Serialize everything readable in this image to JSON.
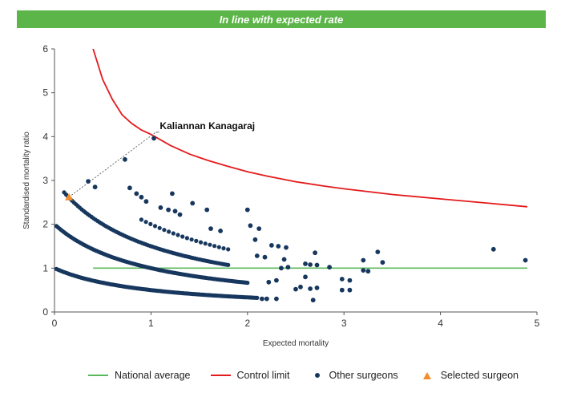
{
  "banner": {
    "text": "In line with expected rate",
    "color": "#5cb548"
  },
  "colors": {
    "national_average": "#5cb85c",
    "control_limit": "#e41a1c",
    "other_surgeons": "#17375e",
    "selected_surgeon": "#f28e2b"
  },
  "chart_data": {
    "type": "scatter",
    "xlabel": "Expected mortality",
    "ylabel": "Standardised mortality ratio",
    "xlim": [
      0,
      5
    ],
    "ylim": [
      0,
      6
    ],
    "xticks": [
      "0",
      "1",
      "2",
      "3",
      "4",
      "5"
    ],
    "yticks": [
      "0",
      "1",
      "2",
      "3",
      "4",
      "5",
      "6"
    ],
    "grid": false,
    "legend_position": "bottom",
    "national_average": {
      "name": "National average",
      "y": 1,
      "x_range": [
        0.4,
        4.9
      ]
    },
    "control_limit": {
      "name": "Control limit",
      "points": [
        [
          0.4,
          6.0
        ],
        [
          0.5,
          5.3
        ],
        [
          0.6,
          4.85
        ],
        [
          0.7,
          4.5
        ],
        [
          0.8,
          4.3
        ],
        [
          0.9,
          4.15
        ],
        [
          1.0,
          4.05
        ],
        [
          1.2,
          3.8
        ],
        [
          1.4,
          3.6
        ],
        [
          1.6,
          3.45
        ],
        [
          1.8,
          3.32
        ],
        [
          2.0,
          3.2
        ],
        [
          2.2,
          3.1
        ],
        [
          2.5,
          2.97
        ],
        [
          2.8,
          2.87
        ],
        [
          3.0,
          2.81
        ],
        [
          3.5,
          2.68
        ],
        [
          4.0,
          2.58
        ],
        [
          4.5,
          2.48
        ],
        [
          4.9,
          2.4
        ]
      ]
    },
    "other_surgeons": {
      "name": "Other surgeons",
      "curve_bands": [
        {
          "numerator": 1,
          "x_from": 0.02,
          "x_to": 2.1,
          "count": 140
        },
        {
          "numerator": 2,
          "x_from": 0.02,
          "x_to": 2.0,
          "count": 120
        },
        {
          "numerator": 3,
          "x_from": 0.1,
          "x_to": 1.8,
          "count": 85
        },
        {
          "numerator": 4,
          "x_from": 0.9,
          "x_to": 1.8,
          "count": 20
        }
      ],
      "points": [
        [
          0.35,
          2.98
        ],
        [
          0.42,
          2.85
        ],
        [
          0.73,
          3.48
        ],
        [
          0.78,
          2.83
        ],
        [
          0.85,
          2.7
        ],
        [
          0.9,
          2.62
        ],
        [
          0.95,
          2.52
        ],
        [
          1.03,
          3.96
        ],
        [
          1.1,
          2.38
        ],
        [
          1.18,
          2.33
        ],
        [
          1.22,
          2.7
        ],
        [
          1.25,
          2.3
        ],
        [
          1.3,
          2.22
        ],
        [
          1.43,
          2.48
        ],
        [
          1.58,
          2.33
        ],
        [
          1.62,
          1.9
        ],
        [
          1.72,
          1.85
        ],
        [
          2.0,
          2.33
        ],
        [
          2.03,
          1.97
        ],
        [
          2.12,
          1.9
        ],
        [
          2.08,
          1.65
        ],
        [
          2.1,
          1.28
        ],
        [
          2.18,
          1.25
        ],
        [
          2.25,
          1.52
        ],
        [
          2.32,
          1.5
        ],
        [
          2.4,
          1.47
        ],
        [
          2.38,
          1.2
        ],
        [
          2.35,
          1.0
        ],
        [
          2.42,
          1.02
        ],
        [
          2.3,
          0.72
        ],
        [
          2.22,
          0.68
        ],
        [
          2.6,
          1.1
        ],
        [
          2.65,
          1.08
        ],
        [
          2.7,
          1.35
        ],
        [
          2.72,
          1.07
        ],
        [
          2.85,
          1.02
        ],
        [
          2.6,
          0.8
        ],
        [
          2.55,
          0.57
        ],
        [
          2.65,
          0.53
        ],
        [
          2.72,
          0.55
        ],
        [
          2.68,
          0.27
        ],
        [
          2.5,
          0.52
        ],
        [
          2.98,
          0.75
        ],
        [
          3.06,
          0.72
        ],
        [
          2.98,
          0.5
        ],
        [
          3.06,
          0.5
        ],
        [
          3.2,
          1.18
        ],
        [
          3.2,
          0.95
        ],
        [
          3.25,
          0.93
        ],
        [
          3.35,
          1.37
        ],
        [
          3.4,
          1.13
        ],
        [
          4.55,
          1.43
        ],
        [
          4.88,
          1.18
        ],
        [
          2.2,
          0.3
        ],
        [
          2.15,
          0.3
        ],
        [
          2.3,
          0.3
        ]
      ]
    },
    "selected_surgeon": {
      "name": "Selected surgeon",
      "label": "Kaliannan Kanagaraj",
      "x": 0.15,
      "y": 2.62
    }
  }
}
